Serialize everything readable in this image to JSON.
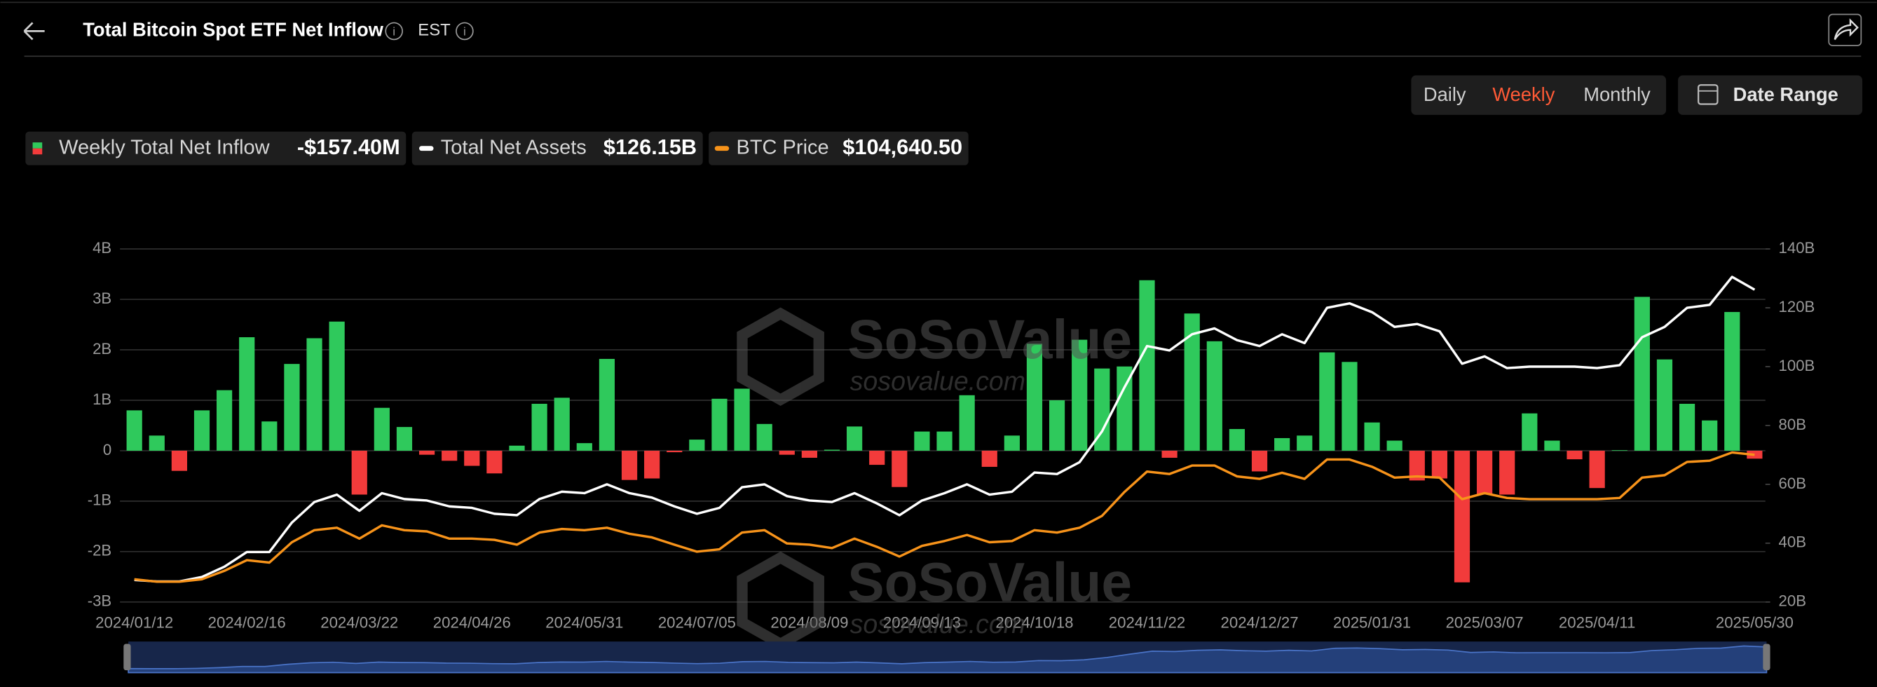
{
  "header": {
    "title": "Total Bitcoin Spot ETF Net Inflow",
    "timezone": "EST"
  },
  "controls": {
    "tabs": [
      "Daily",
      "Weekly",
      "Monthly"
    ],
    "active_tab": 1,
    "active_color": "#ff5a36",
    "date_range": "Date Range"
  },
  "chart_data": {
    "type": "bar",
    "categories": [
      "2024/01/12",
      null,
      null,
      null,
      null,
      "2024/02/16",
      null,
      null,
      null,
      null,
      "2024/03/22",
      null,
      null,
      null,
      null,
      "2024/04/26",
      null,
      null,
      null,
      null,
      "2024/05/31",
      null,
      null,
      null,
      null,
      "2024/07/05",
      null,
      null,
      null,
      null,
      "2024/08/09",
      null,
      null,
      null,
      null,
      "2024/09/13",
      null,
      null,
      null,
      null,
      "2024/10/18",
      null,
      null,
      null,
      null,
      "2024/11/22",
      null,
      null,
      null,
      null,
      "2024/12/27",
      null,
      null,
      null,
      null,
      "2025/01/31",
      null,
      null,
      null,
      null,
      "2025/03/07",
      null,
      null,
      null,
      null,
      "2025/04/11",
      null,
      null,
      null,
      null,
      null,
      null,
      "2025/05/30"
    ],
    "ylim": [
      -3,
      4
    ],
    "yticks": [
      {
        "value": -3,
        "label": "-3B"
      },
      {
        "value": -2,
        "label": "-2B"
      },
      {
        "value": -1,
        "label": "-1B"
      },
      0,
      {
        "value": 1,
        "label": "1B"
      },
      {
        "value": 2,
        "label": "2B"
      },
      {
        "value": 3,
        "label": "3B"
      },
      {
        "value": 4,
        "label": "4B"
      }
    ],
    "y2lim": [
      20,
      140
    ],
    "y2ticks": [
      {
        "value": 20,
        "label": "20B"
      },
      {
        "value": 40,
        "label": "40B"
      },
      {
        "value": 60,
        "label": "60B"
      },
      {
        "value": 80,
        "label": "80B"
      },
      {
        "value": 100,
        "label": "100B"
      },
      {
        "value": 120,
        "label": "120B"
      },
      {
        "value": 140,
        "label": "140B"
      }
    ],
    "y3lim": [
      31500,
      206900
    ],
    "grid": true,
    "series": [
      {
        "name": "Weekly Total Net Inflow",
        "type": "bar",
        "current": "-$157.40M",
        "colors": {
          "positive": "#2fc95c",
          "negative": "#f23b3b"
        },
        "values": [
          0.8,
          0.3,
          -0.4,
          0.8,
          1.2,
          2.25,
          0.58,
          1.72,
          2.23,
          2.56,
          -0.87,
          0.85,
          0.47,
          -0.08,
          -0.2,
          -0.3,
          -0.45,
          0.1,
          0.93,
          1.05,
          0.15,
          1.82,
          -0.58,
          -0.55,
          -0.03,
          0.22,
          1.03,
          1.23,
          0.53,
          -0.08,
          -0.14,
          0.02,
          0.48,
          -0.28,
          -0.72,
          0.38,
          0.38,
          1.1,
          -0.32,
          0.3,
          2.12,
          1.0,
          2.2,
          1.63,
          1.67,
          3.38,
          -0.14,
          2.72,
          2.17,
          0.43,
          -0.41,
          0.25,
          0.3,
          1.95,
          1.76,
          0.56,
          0.2,
          -0.59,
          -0.55,
          -2.61,
          -0.87,
          -0.87,
          0.74,
          0.2,
          -0.17,
          -0.74,
          0.01,
          3.05,
          1.81,
          0.93,
          0.6,
          2.75,
          -0.1574
        ]
      },
      {
        "name": "Total Net Assets",
        "type": "line",
        "axis": "y2",
        "current": "$126.15B",
        "color": "#ffffff",
        "values": [
          27.5,
          27,
          27,
          28.5,
          32,
          37,
          37,
          47,
          54,
          56.5,
          51,
          57,
          55,
          54.5,
          52.5,
          52,
          50,
          49.5,
          55,
          57.5,
          57,
          60,
          57,
          55.5,
          52.5,
          50,
          52,
          59,
          60,
          56,
          54.5,
          54,
          57,
          53.5,
          49.5,
          54.5,
          57,
          60,
          56.5,
          57.5,
          64,
          63.5,
          67.5,
          78,
          93,
          107,
          105.5,
          111,
          113,
          109,
          107,
          111,
          108,
          120,
          121.5,
          118.5,
          113.5,
          114.5,
          112,
          101,
          103.5,
          99.5,
          100,
          100,
          100,
          99.5,
          100.5,
          110,
          113.5,
          120,
          121,
          130.5,
          126.15
        ]
      },
      {
        "name": "BTC Price",
        "type": "line",
        "axis": "y3",
        "current": "$104,640.50",
        "color": "#f7931a",
        "values": [
          42800,
          41600,
          41600,
          42800,
          47000,
          52300,
          51100,
          61200,
          67200,
          68400,
          63000,
          69600,
          67200,
          66600,
          63000,
          63000,
          62400,
          60000,
          66000,
          67800,
          67200,
          68400,
          65400,
          63600,
          60000,
          56500,
          57700,
          66000,
          67200,
          60600,
          60000,
          58300,
          63000,
          58900,
          54100,
          59400,
          61800,
          64800,
          61200,
          61800,
          67200,
          66000,
          68400,
          74300,
          86200,
          96300,
          95100,
          99300,
          99300,
          93900,
          92700,
          95700,
          92700,
          102300,
          102300,
          98700,
          93300,
          93900,
          93300,
          82600,
          85600,
          83200,
          82600,
          82600,
          82600,
          82600,
          83200,
          93300,
          94500,
          101100,
          101700,
          105800,
          104640.5
        ]
      }
    ],
    "watermark": {
      "brand": "SoSoValue",
      "site": "sosovalue.com"
    }
  }
}
